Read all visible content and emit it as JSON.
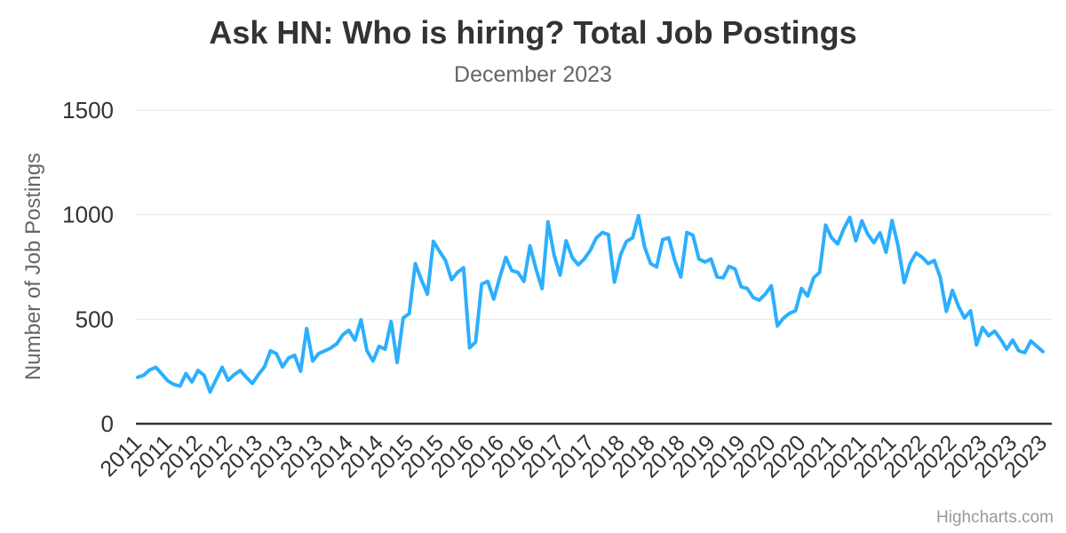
{
  "chart_data": {
    "type": "line",
    "title": "Ask HN: Who is hiring? Total Job Postings",
    "subtitle": "December 2023",
    "xlabel": "",
    "ylabel": "Number of Job Postings",
    "x_start": "2011-06",
    "x_end": "2023-12",
    "x_interval": "monthly",
    "n_points": 151,
    "ylim": [
      0,
      1500
    ],
    "yticks": [
      0,
      500,
      1000,
      1500
    ],
    "grid": "horizontal",
    "legend": "none",
    "xtick_step": 5,
    "xtick_labels": [
      "2011",
      "2011",
      "2012",
      "2012",
      "2013",
      "2013",
      "2013",
      "2014",
      "2014",
      "2015",
      "2015",
      "2016",
      "2016",
      "2016",
      "2017",
      "2017",
      "2018",
      "2018",
      "2018",
      "2019",
      "2019",
      "2020",
      "2020",
      "2021",
      "2021",
      "2021",
      "2022",
      "2022",
      "2023",
      "2023",
      "2023"
    ],
    "series": [
      {
        "color": "#2caffe",
        "line_width": 4,
        "values": [
          222,
          232,
          258,
          270,
          238,
          205,
          188,
          180,
          240,
          200,
          255,
          232,
          152,
          212,
          270,
          208,
          235,
          255,
          222,
          193,
          235,
          272,
          349,
          335,
          272,
          314,
          327,
          251,
          455,
          300,
          336,
          349,
          362,
          383,
          426,
          447,
          400,
          497,
          349,
          300,
          370,
          357,
          489,
          293,
          506,
          527,
          766,
          689,
          620,
          873,
          825,
          781,
          689,
          724,
          746,
          363,
          391,
          668,
          681,
          596,
          700,
          796,
          732,
          724,
          681,
          851,
          740,
          646,
          966,
          808,
          711,
          875,
          796,
          760,
          788,
          830,
          889,
          915,
          905,
          677,
          808,
          873,
          889,
          995,
          846,
          766,
          750,
          881,
          889,
          781,
          702,
          915,
          902,
          788,
          774,
          788,
          702,
          698,
          753,
          740,
          655,
          647,
          604,
          591,
          620,
          660,
          468,
          505,
          528,
          540,
          647,
          611,
          698,
          724,
          950,
          889,
          860,
          932,
          987,
          875,
          970,
          905,
          866,
          913,
          820,
          972,
          850,
          675,
          766,
          817,
          796,
          766,
          781,
          700,
          538,
          638,
          562,
          506,
          540,
          377,
          460,
          421,
          443,
          404,
          357,
          400,
          349,
          340,
          396,
          370,
          345
        ]
      }
    ]
  },
  "credits": {
    "label": "Highcharts.com"
  },
  "colors": {
    "title": "#333333",
    "subtitle": "#666666",
    "axis_labels": "#333333",
    "axis_title": "#666666",
    "gridline": "#e6e6e6",
    "axis_line": "#333333",
    "series_line": "#2caffe",
    "credits": "#999999",
    "background": "#ffffff"
  }
}
